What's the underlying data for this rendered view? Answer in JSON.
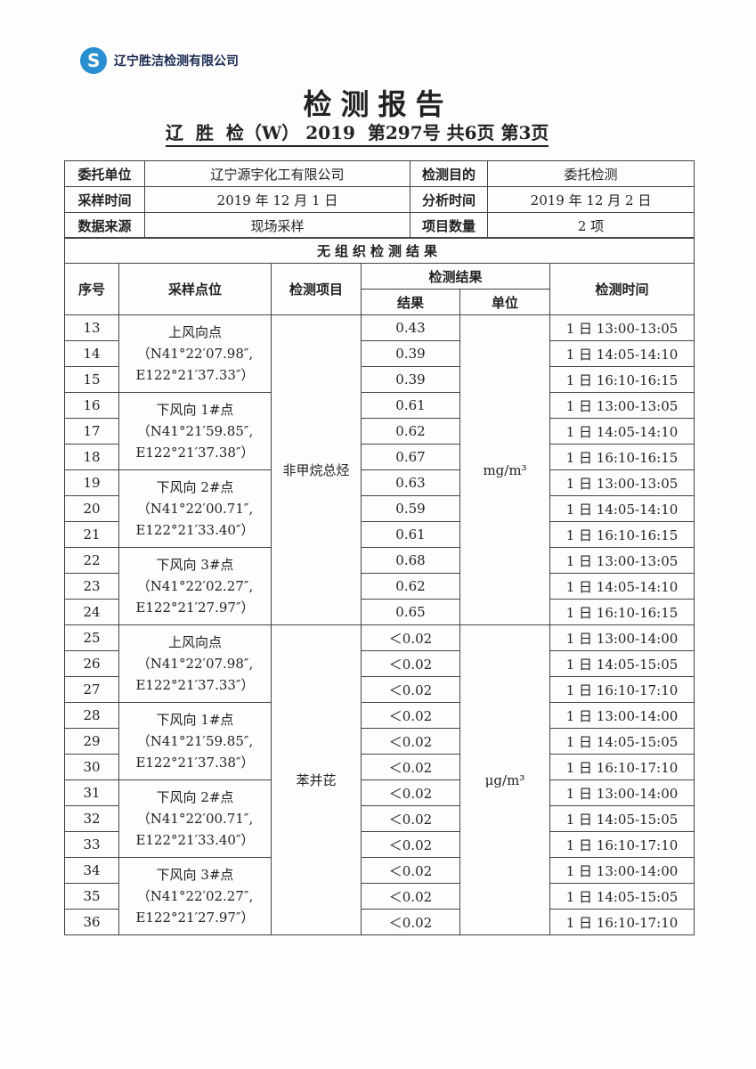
{
  "header": {
    "company": "辽宁胜洁检测有限公司",
    "title": "检测报告",
    "report_number": "辽  胜  检（W） 2019  第297号 共6页 第3页"
  },
  "info": {
    "client_label": "委托单位",
    "client": "辽宁源宇化工有限公司",
    "purpose_label": "检测目的",
    "purpose": "委托检测",
    "sampling_time_label": "采样时间",
    "sampling_time": "2019 年 12 月 1 日",
    "analysis_time_label": "分析时间",
    "analysis_time": "2019 年 12 月 2 日",
    "source_label": "数据来源",
    "source": "现场采样",
    "count_label": "项目数量",
    "count": "2 项"
  },
  "results": {
    "section_title": "无组织检测结果",
    "headers": {
      "seq": "序号",
      "point": "采样点位",
      "item": "检测项目",
      "result_group": "检测结果",
      "result": "结果",
      "unit": "单位",
      "time": "检测时间"
    },
    "groups": [
      {
        "item": "非甲烷总烃",
        "unit": "mg/m³",
        "points": [
          {
            "name": "上风向点",
            "coord1": "（N41°22′07.98″,",
            "coord2": "E122°21′37.33″）"
          },
          {
            "name": "下风向 1#点",
            "coord1": "（N41°21′59.85″,",
            "coord2": "E122°21′37.38″）"
          },
          {
            "name": "下风向 2#点",
            "coord1": "（N41°22′00.71″,",
            "coord2": "E122°21′33.40″）"
          },
          {
            "name": "下风向 3#点",
            "coord1": "（N41°22′02.27″,",
            "coord2": "E122°21′27.97″）"
          }
        ],
        "rows": [
          [
            "13",
            "0.43",
            "1 日 13:00-13:05"
          ],
          [
            "14",
            "0.39",
            "1 日 14:05-14:10"
          ],
          [
            "15",
            "0.39",
            "1 日 16:10-16:15"
          ],
          [
            "16",
            "0.61",
            "1 日 13:00-13:05"
          ],
          [
            "17",
            "0.62",
            "1 日 14:05-14:10"
          ],
          [
            "18",
            "0.67",
            "1 日 16:10-16:15"
          ],
          [
            "19",
            "0.63",
            "1 日 13:00-13:05"
          ],
          [
            "20",
            "0.59",
            "1 日 14:05-14:10"
          ],
          [
            "21",
            "0.61",
            "1 日 16:10-16:15"
          ],
          [
            "22",
            "0.68",
            "1 日 13:00-13:05"
          ],
          [
            "23",
            "0.62",
            "1 日 14:05-14:10"
          ],
          [
            "24",
            "0.65",
            "1 日 16:10-16:15"
          ]
        ]
      },
      {
        "item": "苯并芘",
        "unit": "μg/m³",
        "points": [
          {
            "name": "上风向点",
            "coord1": "（N41°22′07.98″,",
            "coord2": "E122°21′37.33″）"
          },
          {
            "name": "下风向 1#点",
            "coord1": "（N41°21′59.85″,",
            "coord2": "E122°21′37.38″）"
          },
          {
            "name": "下风向 2#点",
            "coord1": "（N41°22′00.71″,",
            "coord2": "E122°21′33.40″）"
          },
          {
            "name": "下风向 3#点",
            "coord1": "（N41°22′02.27″,",
            "coord2": "E122°21′27.97″）"
          }
        ],
        "rows": [
          [
            "25",
            "＜0.02",
            "1 日 13:00-14:00"
          ],
          [
            "26",
            "＜0.02",
            "1 日 14:05-15:05"
          ],
          [
            "27",
            "＜0.02",
            "1 日 16:10-17:10"
          ],
          [
            "28",
            "＜0.02",
            "1 日 13:00-14:00"
          ],
          [
            "29",
            "＜0.02",
            "1 日 14:05-15:05"
          ],
          [
            "30",
            "＜0.02",
            "1 日 16:10-17:10"
          ],
          [
            "31",
            "＜0.02",
            "1 日 13:00-14:00"
          ],
          [
            "32",
            "＜0.02",
            "1 日 14:05-15:05"
          ],
          [
            "33",
            "＜0.02",
            "1 日 16:10-17:10"
          ],
          [
            "34",
            "＜0.02",
            "1 日 13:00-14:00"
          ],
          [
            "35",
            "＜0.02",
            "1 日 14:05-15:05"
          ],
          [
            "36",
            "＜0.02",
            "1 日 16:10-17:10"
          ]
        ]
      }
    ]
  }
}
